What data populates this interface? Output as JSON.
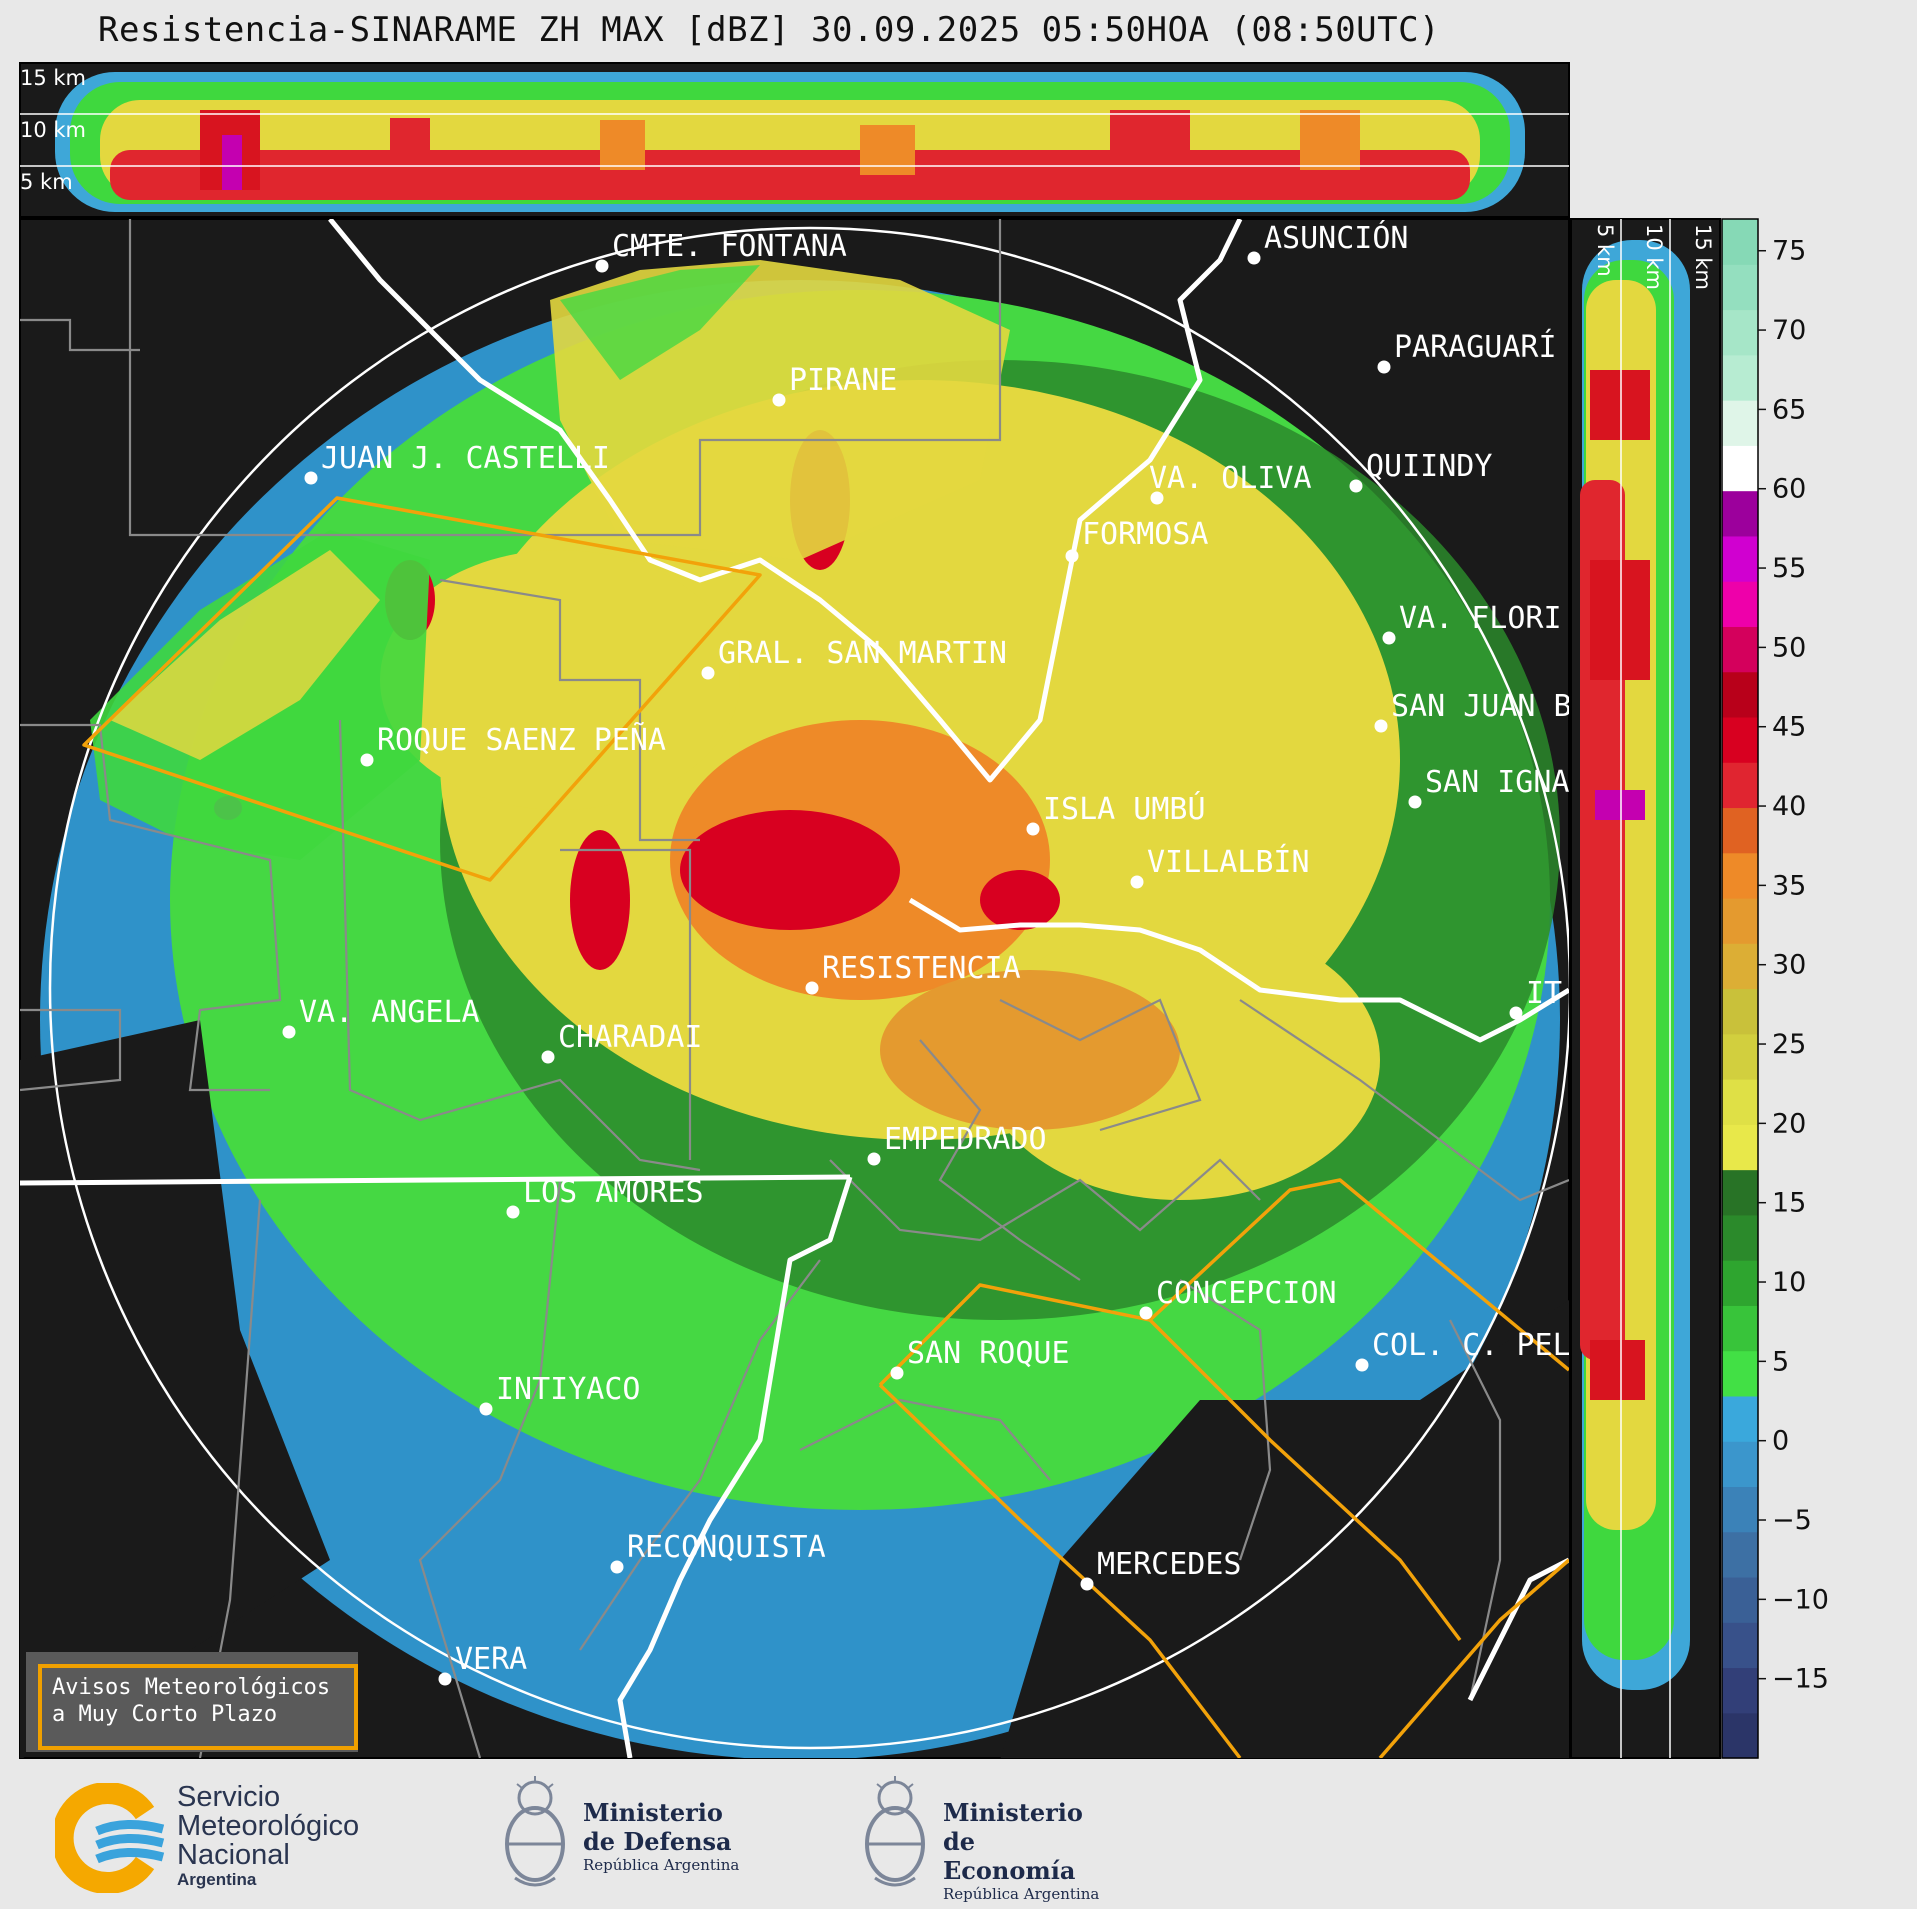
{
  "title": "Resistencia-SINARAME ZH MAX [dBZ] 30.09.2025 05:50HOA (08:50UTC)",
  "top_panel": {
    "alt_labels": [
      "15 km",
      "10 km",
      "5 km"
    ]
  },
  "side_panel": {
    "alt_labels": [
      "5 km",
      "10 km",
      "15 km"
    ]
  },
  "colorbar": {
    "ticks": [
      "75",
      "70",
      "65",
      "60",
      "55",
      "50",
      "45",
      "40",
      "35",
      "30",
      "25",
      "20",
      "15",
      "10",
      "5",
      "0",
      "−5",
      "−10",
      "−15"
    ],
    "min_dbz": -20,
    "max_dbz": 77,
    "colors": [
      "#2b3568",
      "#323f78",
      "#38518a",
      "#3a6096",
      "#3d70a4",
      "#3b82b8",
      "#3b96cc",
      "#3aa8dc",
      "#42e045",
      "#38c43a",
      "#2ea52f",
      "#2b8a2b",
      "#287326",
      "#e8e84a",
      "#dfe046",
      "#d2cf3e",
      "#c9c13a",
      "#dcae35",
      "#e49a2f",
      "#ee8a28",
      "#e06222",
      "#e02530",
      "#d80020",
      "#b8001a",
      "#d4005c",
      "#ee00aa",
      "#d000d0",
      "#9c009c",
      "#ffffff",
      "#dff5e8",
      "#b7ecd2",
      "#a6e6c8",
      "#94dfbf",
      "#86d9b6"
    ]
  },
  "cities": [
    {
      "name": "CMTE. FONTANA"
    },
    {
      "name": "ASUNCIÓN"
    },
    {
      "name": "PARAGUARÍ"
    },
    {
      "name": "PIRANE"
    },
    {
      "name": "JUAN J. CASTELLI"
    },
    {
      "name": "VA. OLIVA"
    },
    {
      "name": "QUIINDY"
    },
    {
      "name": "FORMOSA"
    },
    {
      "name": "VA. FLORI"
    },
    {
      "name": "GRAL. SAN MARTIN"
    },
    {
      "name": "SAN JUAN B"
    },
    {
      "name": "ROQUE SAENZ PEÑA"
    },
    {
      "name": "SAN IGNA"
    },
    {
      "name": "ISLA UMBÚ"
    },
    {
      "name": "VILLALBÍN"
    },
    {
      "name": "RESISTENCIA"
    },
    {
      "name": "IT"
    },
    {
      "name": "VA. ANGELA"
    },
    {
      "name": "CHARADAI"
    },
    {
      "name": "EMPEDRADO"
    },
    {
      "name": "LOS AMORES"
    },
    {
      "name": "CONCEPCION"
    },
    {
      "name": "SAN ROQUE"
    },
    {
      "name": "COL. C. PEL"
    },
    {
      "name": "INTIYACO"
    },
    {
      "name": "RECONQUISTA"
    },
    {
      "name": "MERCEDES"
    },
    {
      "name": "VERA"
    }
  ],
  "alerts": {
    "line1": "Avisos Meteorológicos",
    "line2": "a Muy Corto Plazo"
  },
  "logos": {
    "smn": {
      "line1": "Servicio",
      "line2": "Meteorológico",
      "line3": "Nacional",
      "line4": "Argentina"
    },
    "defensa": {
      "line1": "Ministerio",
      "line2": "de Defensa",
      "line3": "República Argentina"
    },
    "economia": {
      "line1": "Ministerio",
      "line2": "de Economía",
      "line3": "República Argentina"
    }
  }
}
